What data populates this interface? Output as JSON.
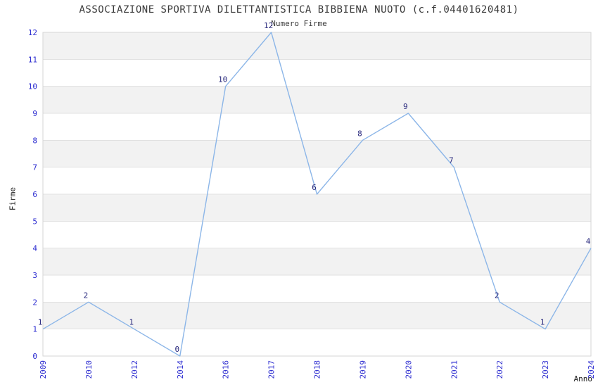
{
  "title": "ASSOCIAZIONE SPORTIVA DILETTANTISTICA BIBBIENA NUOTO (c.f.04401620481)",
  "subtitle": "Numero Firme",
  "chart_data": {
    "type": "line",
    "categories": [
      "2009",
      "2010",
      "2012",
      "2014",
      "2016",
      "2017",
      "2018",
      "2019",
      "2020",
      "2021",
      "2022",
      "2023",
      "2024"
    ],
    "values": [
      1,
      2,
      1,
      0,
      10,
      12,
      6,
      8,
      9,
      7,
      2,
      1,
      4
    ],
    "title": "ASSOCIAZIONE SPORTIVA DILETTANTISTICA BIBBIENA NUOTO (c.f.04401620481)",
    "subtitle": "Numero Firme",
    "xlabel": "Anno",
    "ylabel": "Firme",
    "ylim": [
      0,
      12
    ],
    "y_tick_step": 1,
    "grid": "horizontal alternating bands",
    "legend": "none",
    "data_labels_shown": true,
    "colors": {
      "line": "#8cb6e8",
      "band": "#f2f2f2",
      "gridline": "#e1e1e1",
      "border": "#d5d5d5",
      "tick_label": "#2b2bd0",
      "data_label": "#29297d",
      "title_text": "#3a3a3a"
    }
  }
}
